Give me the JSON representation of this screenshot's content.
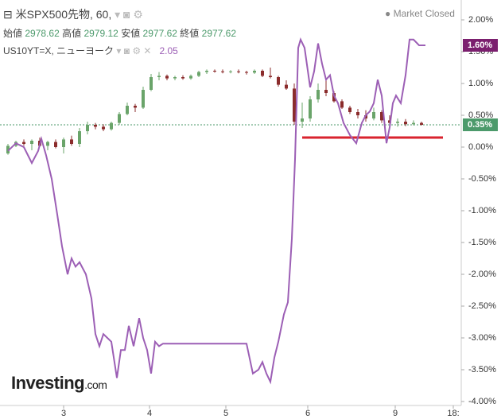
{
  "chart_data": {
    "type": "line",
    "title": "米SPX500先物, 60,",
    "status": "Market Closed",
    "ohlc": [
      {
        "label": "始値",
        "value": "2978.62"
      },
      {
        "label": "高値",
        "value": "2979.12"
      },
      {
        "label": "安値",
        "value": "2977.62"
      },
      {
        "label": "終値",
        "value": "2977.62"
      }
    ],
    "overlay": {
      "label": "US10YT=X, ニューヨーク",
      "value": "2.05"
    },
    "logo": {
      "main": "Investing",
      "suffix": ".com"
    },
    "xlim": [
      0,
      58
    ],
    "xticks": [
      {
        "value": 8,
        "label": "3"
      },
      {
        "value": 18.8,
        "label": "4"
      },
      {
        "value": 28.4,
        "label": "5"
      },
      {
        "value": 38.7,
        "label": "6"
      },
      {
        "value": 49.7,
        "label": "9"
      },
      {
        "value": 57,
        "label": "18:"
      }
    ],
    "ylim": [
      -4.0625,
      2.3125
    ],
    "yticks": [
      {
        "value": 2,
        "label": "2.00%"
      },
      {
        "value": 1.5,
        "label": "1.50%"
      },
      {
        "value": 1,
        "label": "1.00%"
      },
      {
        "value": 0.5,
        "label": "0.50%"
      },
      {
        "value": 0,
        "label": "0.00%"
      },
      {
        "value": -0.5,
        "label": "-0.50%"
      },
      {
        "value": -1,
        "label": "-1.00%"
      },
      {
        "value": -1.5,
        "label": "-1.50%"
      },
      {
        "value": -2,
        "label": "-2.00%"
      },
      {
        "value": -2.5,
        "label": "-2.50%"
      },
      {
        "value": -3,
        "label": "-3.00%"
      },
      {
        "value": -3.5,
        "label": "-3.50%"
      },
      {
        "value": -4,
        "label": "-4.00%"
      }
    ],
    "candles": {
      "up_color": "#6aa46a",
      "down_color": "#8b2c2c",
      "x": [
        1,
        2,
        3,
        4,
        5,
        6,
        7,
        8,
        9,
        10,
        11,
        12,
        13,
        14,
        15,
        16,
        17,
        18,
        19,
        20,
        21,
        22,
        23,
        24,
        25,
        26,
        27,
        28,
        29,
        30,
        31,
        32,
        33,
        34,
        35,
        36,
        37,
        38,
        39,
        40,
        41,
        42,
        43,
        44,
        45,
        46,
        47,
        48,
        49,
        50,
        51,
        52,
        53
      ],
      "open": [
        -0.1,
        0.02,
        0.08,
        0.05,
        0.1,
        0.02,
        0.08,
        0.0,
        0.12,
        0.05,
        0.25,
        0.35,
        0.32,
        0.28,
        0.38,
        0.52,
        0.65,
        0.62,
        0.9,
        1.1,
        1.12,
        1.08,
        1.1,
        1.08,
        1.12,
        1.18,
        1.2,
        1.19,
        1.18,
        1.19,
        1.18,
        1.17,
        1.2,
        1.12,
        1.1,
        0.98,
        0.92,
        0.4,
        0.45,
        0.75,
        0.9,
        0.85,
        0.72,
        0.62,
        0.55,
        0.5,
        0.45,
        0.55,
        0.42,
        0.38,
        0.4,
        0.36,
        0.38
      ],
      "high": [
        0.05,
        0.1,
        0.12,
        0.12,
        0.15,
        0.1,
        0.12,
        0.15,
        0.18,
        0.3,
        0.4,
        0.38,
        0.36,
        0.4,
        0.55,
        0.7,
        0.68,
        0.95,
        1.15,
        1.18,
        1.14,
        1.12,
        1.13,
        1.14,
        1.2,
        1.22,
        1.22,
        1.22,
        1.21,
        1.22,
        1.2,
        1.22,
        1.22,
        1.25,
        1.12,
        1.05,
        1.0,
        0.7,
        0.8,
        1.0,
        1.05,
        0.88,
        0.75,
        0.65,
        0.6,
        0.58,
        0.62,
        0.58,
        0.5,
        0.45,
        0.44,
        0.42,
        0.4
      ],
      "low": [
        -0.12,
        0.0,
        0.02,
        -0.05,
        0.0,
        -0.05,
        -0.02,
        -0.1,
        0.02,
        0.0,
        0.2,
        0.28,
        0.25,
        0.26,
        0.35,
        0.5,
        0.55,
        0.6,
        0.88,
        1.05,
        1.05,
        1.05,
        1.06,
        1.06,
        1.1,
        1.15,
        1.17,
        1.16,
        1.16,
        1.16,
        1.14,
        1.15,
        1.1,
        1.08,
        0.95,
        0.9,
        0.35,
        0.3,
        0.4,
        0.7,
        0.8,
        0.7,
        0.6,
        0.52,
        0.45,
        0.4,
        0.42,
        0.38,
        0.32,
        0.32,
        0.33,
        0.34,
        0.34
      ],
      "close": [
        0.02,
        0.08,
        0.05,
        0.1,
        0.02,
        0.08,
        0.0,
        0.12,
        0.05,
        0.25,
        0.35,
        0.32,
        0.28,
        0.38,
        0.52,
        0.65,
        0.62,
        0.9,
        1.1,
        1.12,
        1.08,
        1.1,
        1.08,
        1.12,
        1.18,
        1.2,
        1.19,
        1.18,
        1.19,
        1.18,
        1.17,
        1.2,
        1.12,
        1.1,
        0.98,
        0.92,
        0.4,
        0.45,
        0.75,
        0.9,
        0.85,
        0.72,
        0.62,
        0.55,
        0.5,
        0.45,
        0.55,
        0.42,
        0.38,
        0.4,
        0.36,
        0.38,
        0.35
      ]
    },
    "series": [
      {
        "name": "US10YT=X",
        "color": "#9c5fb5",
        "x": [
          1,
          2,
          3,
          4,
          4.8,
          5.2,
          5.8,
          6.5,
          7.2,
          7.8,
          8.5,
          9,
          9.5,
          10,
          10.8,
          11.5,
          12,
          12.5,
          13,
          13.5,
          14,
          14.7,
          15.2,
          15.7,
          16.2,
          16.8,
          17.5,
          18,
          18.5,
          19,
          19.5,
          20,
          20.5,
          25,
          30,
          31,
          31.8,
          32.5,
          33,
          33.5,
          34,
          34.5,
          35,
          35.7,
          36.2,
          36.7,
          37.1,
          37.5,
          37.8,
          38.3,
          39,
          39.5,
          40,
          40.5,
          41,
          41.5,
          42,
          42.5,
          43.2,
          44,
          44.8,
          45.5,
          46,
          46.5,
          47,
          47.5,
          48,
          48.6,
          49,
          49.4,
          49.8,
          50.4,
          51,
          51.5,
          52,
          52.7,
          53.5
        ],
        "values": [
          -0.06,
          0.06,
          0,
          -0.25,
          -0.06,
          0.13,
          -0.13,
          -0.5,
          -1.06,
          -1.56,
          -2.0,
          -1.75,
          -1.88,
          -1.81,
          -2.0,
          -2.38,
          -2.94,
          -3.13,
          -2.94,
          -3.0,
          -3.06,
          -3.63,
          -3.19,
          -3.19,
          -2.81,
          -3.13,
          -2.69,
          -3.0,
          -3.19,
          -3.56,
          -3.06,
          -3.13,
          -3.09,
          -3.09,
          -3.09,
          -3.09,
          -3.56,
          -3.5,
          -3.38,
          -3.56,
          -3.69,
          -3.31,
          -3.06,
          -2.63,
          -2.44,
          -1.44,
          -0.19,
          1.56,
          1.69,
          1.56,
          0.94,
          1.19,
          1.63,
          1.31,
          1.06,
          1.13,
          0.81,
          0.69,
          0.38,
          0.19,
          0.06,
          0.38,
          0.5,
          0.56,
          0.69,
          1.06,
          0.81,
          0.06,
          0.31,
          0.69,
          0.81,
          0.69,
          1.13,
          1.69,
          1.69,
          1.6,
          1.6
        ]
      }
    ],
    "price_labels": [
      {
        "value": 1.6,
        "label": "1.60%",
        "color": "#7b1f6e"
      },
      {
        "value": 0.35,
        "label": "0.35%",
        "color": "#4c9a6b"
      }
    ],
    "hlines": [
      {
        "value": 0.35,
        "color": "#4c9a6b",
        "dashed": true,
        "x": [
          0,
          58
        ]
      },
      {
        "value": 0.15,
        "color": "#d9232e",
        "dashed": false,
        "x": [
          38,
          55.7
        ]
      }
    ]
  }
}
